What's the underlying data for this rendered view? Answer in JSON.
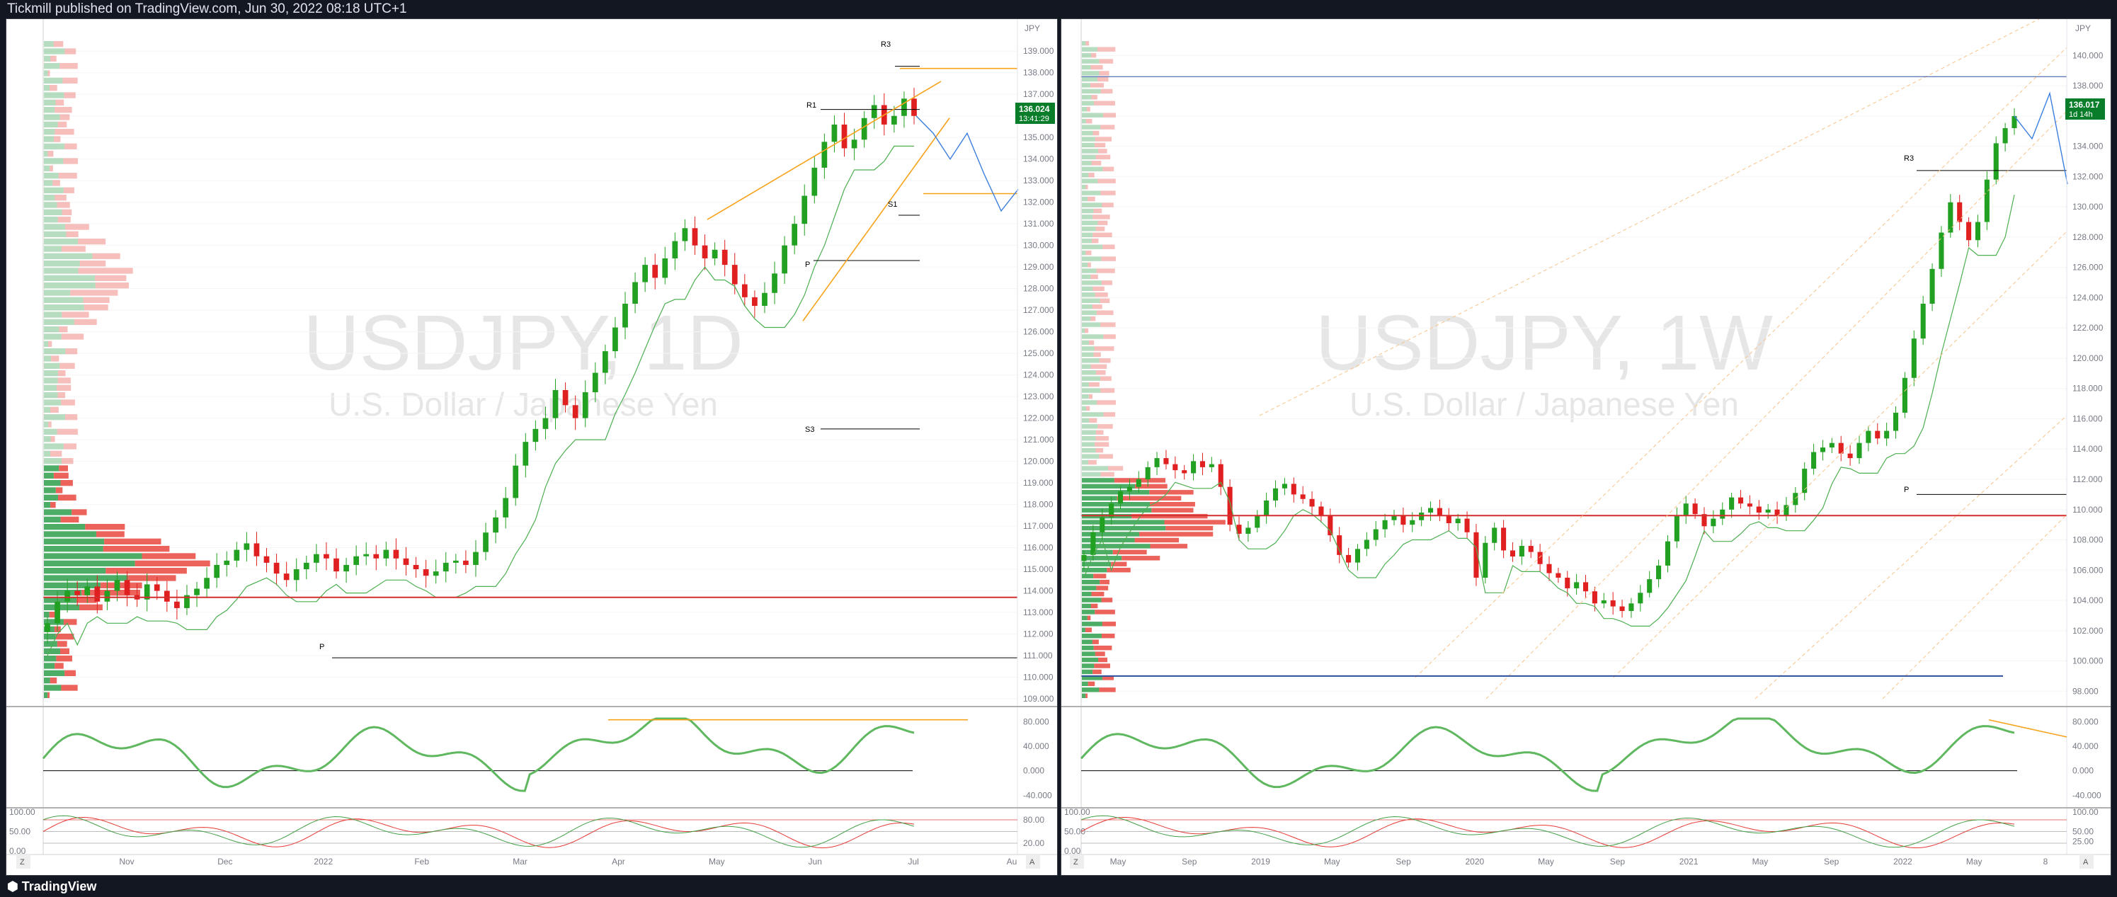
{
  "header": {
    "publisher_line": "Tickmill published on TradingView.com, Jun 30, 2022 08:18 UTC+1"
  },
  "footer": {
    "brand": "TradingView"
  },
  "colors": {
    "up": "#22a022",
    "down": "#e02020",
    "accent": "#f7a21b",
    "projection": "#3c7ee0",
    "price_tag": "#0a7d2a",
    "support_line": "#d32f2f"
  },
  "left_chart": {
    "symbol": "USDJPY, 1D",
    "description": "U.S. Dollar / Japanese Yen",
    "currency_label": "JPY",
    "last_price": "136.024",
    "countdown": "13:41:29",
    "pivot_labels": {
      "r3": "R3",
      "r1": "R1",
      "s1": "S1",
      "p_upper": "P",
      "s3": "S3",
      "p_lower": "P"
    },
    "y_ticks": [
      "139.000",
      "138.000",
      "137.000",
      "136.000",
      "135.000",
      "134.000",
      "133.000",
      "132.000",
      "131.000",
      "130.000",
      "129.000",
      "128.000",
      "127.000",
      "126.000",
      "125.000",
      "124.000",
      "123.000",
      "122.000",
      "121.000",
      "120.000",
      "119.000",
      "118.000",
      "117.000",
      "116.000",
      "115.000",
      "114.000",
      "113.000",
      "112.000",
      "111.000",
      "110.000",
      "109.000"
    ],
    "x_ticks": [
      "Nov",
      "Dec",
      "2022",
      "Feb",
      "Mar",
      "Apr",
      "May",
      "Jun",
      "Jul",
      "Au"
    ],
    "osc1_ticks": [
      "80.000",
      "40.000",
      "0.000",
      "-40.000"
    ],
    "osc2_ticks": [
      "80.00",
      "20.00"
    ],
    "osc2_left_ticks": [
      "100.00",
      "50.00",
      "0.00"
    ],
    "corner_left": "Z",
    "corner_right": "A",
    "chart_data": {
      "type": "candlestick",
      "symbol": "USDJPY",
      "timeframe": "1D",
      "x_range": [
        "Oct 2021",
        "Jul 2022"
      ],
      "ylim": [
        109,
        139.5
      ],
      "closes_approx": [
        112.5,
        113.5,
        114.0,
        113.8,
        114.2,
        113.5,
        114.0,
        114.5,
        113.8,
        113.6,
        114.3,
        114.0,
        113.5,
        113.2,
        113.8,
        114.1,
        114.6,
        115.2,
        115.4,
        115.9,
        116.2,
        115.6,
        115.3,
        114.8,
        114.5,
        115.0,
        115.3,
        115.7,
        115.5,
        114.9,
        115.2,
        115.6,
        115.7,
        115.5,
        115.9,
        115.5,
        115.2,
        115.0,
        114.7,
        114.9,
        115.3,
        115.4,
        115.2,
        115.8,
        116.7,
        117.4,
        118.3,
        119.8,
        120.9,
        121.5,
        122.0,
        123.3,
        122.6,
        122.0,
        123.2,
        124.1,
        125.1,
        126.2,
        127.3,
        128.3,
        129.1,
        128.5,
        129.4,
        130.2,
        130.8,
        130.0,
        129.4,
        129.8,
        129.1,
        128.2,
        127.6,
        127.2,
        127.8,
        128.7,
        130.0,
        131.0,
        132.3,
        133.6,
        134.8,
        135.6,
        134.5,
        134.9,
        135.9,
        136.5,
        135.6,
        136.0,
        136.8,
        136.0
      ],
      "horizontal_levels": [
        113.7
      ],
      "pivots": {
        "R3": 138.3,
        "R1": 136.3,
        "P": 129.3,
        "S1": 131.4,
        "S3": 121.5,
        "P_lower": 110.9
      },
      "projection_path": [
        136.0,
        135.2,
        134.0,
        135.2,
        133.3,
        131.6,
        132.6
      ],
      "rising_wedge": {
        "upper": [
          [
            "May 2022",
            131.2
          ],
          [
            "Jun 2022",
            137.0
          ]
        ],
        "lower": [
          [
            "Jun 2022",
            126.5
          ],
          [
            "Jul 2022",
            137.5
          ]
        ]
      },
      "indicators": [
        "RSI-style oscillator (-40 to 80)",
        "Stochastic (0 to 100)"
      ]
    }
  },
  "right_chart": {
    "symbol": "USDJPY, 1W",
    "description": "U.S. Dollar / Japanese Yen",
    "currency_label": "JPY",
    "last_price": "136.017",
    "countdown": "1d 14h",
    "pivot_labels": {
      "r3": "R3",
      "p": "P"
    },
    "y_ticks": [
      "140.000",
      "138.000",
      "136.000",
      "134.000",
      "132.000",
      "130.000",
      "128.000",
      "126.000",
      "124.000",
      "122.000",
      "120.000",
      "118.000",
      "116.000",
      "114.000",
      "112.000",
      "110.000",
      "108.000",
      "106.000",
      "104.000",
      "102.000",
      "100.000",
      "98.000"
    ],
    "x_ticks": [
      "May",
      "Sep",
      "2019",
      "May",
      "Sep",
      "2020",
      "May",
      "Sep",
      "2021",
      "May",
      "Sep",
      "2022",
      "May",
      "8"
    ],
    "osc1_ticks": [
      "80.000",
      "40.000",
      "0.000",
      "-40.000"
    ],
    "osc2_left_ticks": [
      "100.00",
      "50.00",
      "0.00"
    ],
    "osc2_ticks": [
      "100.00",
      "50.00",
      "25.00"
    ],
    "corner_left": "Z",
    "corner_right": "A",
    "chart_data": {
      "type": "candlestick",
      "symbol": "USDJPY",
      "timeframe": "1W",
      "x_range": [
        "2018",
        "Jun 2022"
      ],
      "ylim": [
        97.5,
        141
      ],
      "closes_approx": [
        107.0,
        108.5,
        109.5,
        110.4,
        111.2,
        111.5,
        112.0,
        112.8,
        113.4,
        113.0,
        112.6,
        112.4,
        113.2,
        112.8,
        113.0,
        111.5,
        109.0,
        108.4,
        108.8,
        109.6,
        110.6,
        111.4,
        111.7,
        111.0,
        110.7,
        110.2,
        109.6,
        108.3,
        107.0,
        106.5,
        107.4,
        108.0,
        108.7,
        109.3,
        109.6,
        109.0,
        109.3,
        109.8,
        110.1,
        109.6,
        109.1,
        109.4,
        108.5,
        105.5,
        107.8,
        108.8,
        107.3,
        106.9,
        107.6,
        107.2,
        106.4,
        105.8,
        105.5,
        104.8,
        105.2,
        104.6,
        103.8,
        104.0,
        103.6,
        103.3,
        103.8,
        104.5,
        105.4,
        106.3,
        107.9,
        109.6,
        110.4,
        109.7,
        108.9,
        109.4,
        110.0,
        110.8,
        110.4,
        110.2,
        109.8,
        110.0,
        109.6,
        110.3,
        111.1,
        112.7,
        113.8,
        114.1,
        114.4,
        113.7,
        113.4,
        114.4,
        115.2,
        114.7,
        115.2,
        116.4,
        118.7,
        121.3,
        123.6,
        125.9,
        128.3,
        130.3,
        129.0,
        127.8,
        129.0,
        131.8,
        134.2,
        135.2,
        136.0
      ],
      "horizontal_levels": [
        109.6
      ],
      "pivots": {
        "R3": 132.4,
        "P": 111.0
      },
      "projection_path": [
        136.0,
        134.5,
        137.5,
        131.5
      ],
      "indicators": [
        "RSI-style oscillator (-40 to 80)",
        "Stochastic (0 to 100)"
      ]
    }
  }
}
